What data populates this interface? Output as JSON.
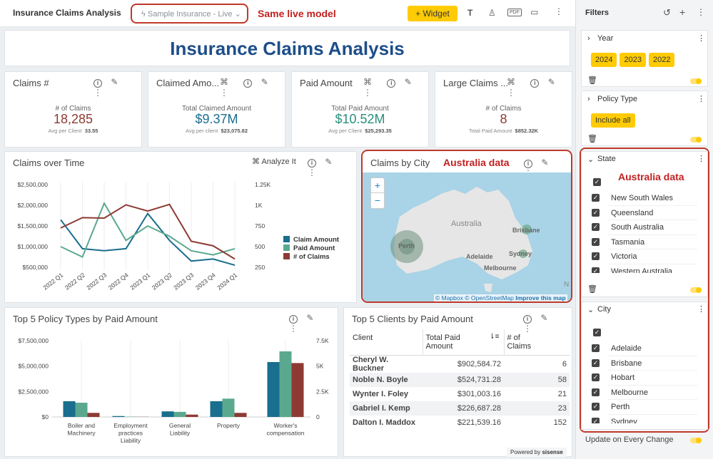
{
  "header": {
    "title": "Insurance Claims Analysis",
    "model": "Sample Insurance - Live",
    "model_note": "Same live model",
    "widget_button": "+ Widget"
  },
  "colors": {
    "accent": "#ffcb05",
    "claim_amount": "#1a6e8e",
    "paid_amount": "#5aa98f",
    "num_claims": "#8e3a33",
    "highlight": "#c0392b"
  },
  "banner": {
    "title": "Insurance Claims Analysis"
  },
  "kpis": [
    {
      "title": "Claims #",
      "caption": "# of Claims",
      "value": "18,285",
      "sub_label": "Avg per Client",
      "sub_value": "33.55",
      "color": "#8e3a33"
    },
    {
      "title": "Claimed Amo...",
      "caption": "Total Claimed Amount",
      "value": "$9.37M",
      "sub_label": "Avg per client",
      "sub_value": "$23,075.82",
      "color": "#1a6e8e"
    },
    {
      "title": "Paid Amount",
      "caption": "Total Paid Amount",
      "value": "$10.52M",
      "sub_label": "Avg per Client",
      "sub_value": "$25,293.35",
      "color": "#2a8f7c"
    },
    {
      "title": "Large Claims ...",
      "caption": "# of Claims",
      "value": "8",
      "sub_label": "Total Paid Amount",
      "sub_value": "$852.32K",
      "color": "#8e3a33"
    }
  ],
  "line_panel": {
    "title": "Claims over Time",
    "analyze": "Analyze It"
  },
  "map_panel": {
    "title": "Claims by City",
    "note": "Australia data",
    "country": "Australia",
    "cities": [
      "Perth",
      "Brisbane",
      "Sydney",
      "Adelaide",
      "Melbourne"
    ],
    "attribution_mapbox": "© Mapbox",
    "attribution_osm": "© OpenStreetMap",
    "attribution_improve": "Improve this map",
    "zoom_in": "+",
    "zoom_out": "−",
    "edge_letter": "N"
  },
  "bar_panel": {
    "title": "Top 5 Policy Types by Paid Amount"
  },
  "table_panel": {
    "title": "Top 5 Clients by Paid Amount",
    "columns": [
      "Client",
      "Total Paid Amount",
      "# of Claims"
    ],
    "rows": [
      [
        "Cheryl W. Buckner",
        "$902,584.72",
        "6"
      ],
      [
        "Noble N. Boyle",
        "$524,731.28",
        "58"
      ],
      [
        "Wynter I. Foley",
        "$301,003.16",
        "21"
      ],
      [
        "Gabriel I. Kemp",
        "$226,687.28",
        "23"
      ],
      [
        "Dalton I. Maddox",
        "$221,539.16",
        "152"
      ]
    ]
  },
  "sidebar": {
    "title": "Filters",
    "year": {
      "label": "Year",
      "chips": [
        "2024",
        "2023",
        "2022"
      ]
    },
    "policy": {
      "label": "Policy Type",
      "chip": "Include all"
    },
    "state": {
      "label": "State",
      "note": "Australia data",
      "items": [
        "New South Wales",
        "Queensland",
        "South Australia",
        "Tasmania",
        "Victoria",
        "Western Australia"
      ]
    },
    "city": {
      "label": "City",
      "items": [
        "Adelaide",
        "Brisbane",
        "Hobart",
        "Melbourne",
        "Perth",
        "Sydney"
      ]
    },
    "update": "Update on Every Change"
  },
  "footer": {
    "powered": "Powered by",
    "brand": "sisense"
  },
  "chart_data": [
    {
      "type": "line",
      "title": "Claims over Time",
      "categories": [
        "2022 Q1",
        "2022 Q2",
        "2022 Q3",
        "2022 Q4",
        "2023 Q1",
        "2023 Q2",
        "2023 Q3",
        "2023 Q4",
        "2024 Q1"
      ],
      "y_left_ticks": [
        "$2,500,000",
        "$2,000,000",
        "$1,500,000",
        "$1,000,000",
        "$500,000"
      ],
      "y_right_ticks": [
        "1.25K",
        "1K",
        "750",
        "500",
        "250"
      ],
      "ylim_left": [
        500000,
        2500000
      ],
      "ylim_right": [
        250,
        1250
      ],
      "series": [
        {
          "name": "Claim Amount",
          "axis": "left",
          "color": "#1a6e8e",
          "values": [
            1650000,
            950000,
            900000,
            950000,
            1800000,
            1150000,
            650000,
            700000,
            550000
          ]
        },
        {
          "name": "Paid Amount",
          "axis": "left",
          "color": "#5aa98f",
          "values": [
            1000000,
            750000,
            2050000,
            1150000,
            1500000,
            1250000,
            900000,
            800000,
            950000
          ]
        },
        {
          "name": "# of Claims",
          "axis": "right",
          "color": "#8e3a33",
          "values": [
            725,
            850,
            845,
            1005,
            930,
            1010,
            565,
            510,
            350
          ]
        }
      ]
    },
    {
      "type": "bar",
      "title": "Top 5 Policy Types by Paid Amount",
      "categories": [
        "Boiler and Machinery",
        "Employment practices Liability",
        "General Liability",
        "Property",
        "Worker's compensation"
      ],
      "y_left_ticks": [
        "$7,500,000",
        "$5,000,000",
        "$2,500,000",
        "$0"
      ],
      "y_right_ticks": [
        "7.5K",
        "5K",
        "2.5K",
        "0"
      ],
      "ylim_left": [
        0,
        7500000
      ],
      "ylim_right": [
        0,
        7500
      ],
      "series": [
        {
          "name": "Claim Amount",
          "axis": "left",
          "color": "#1a6e8e",
          "values": [
            1550000,
            90000,
            550000,
            1550000,
            5400000
          ]
        },
        {
          "name": "Paid Amount",
          "axis": "left",
          "color": "#5aa98f",
          "values": [
            1400000,
            30000,
            500000,
            1800000,
            6450000
          ]
        },
        {
          "name": "# of Claims",
          "axis": "right",
          "color": "#8e3a33",
          "values": [
            400,
            15,
            230,
            400,
            5300
          ]
        }
      ]
    }
  ]
}
